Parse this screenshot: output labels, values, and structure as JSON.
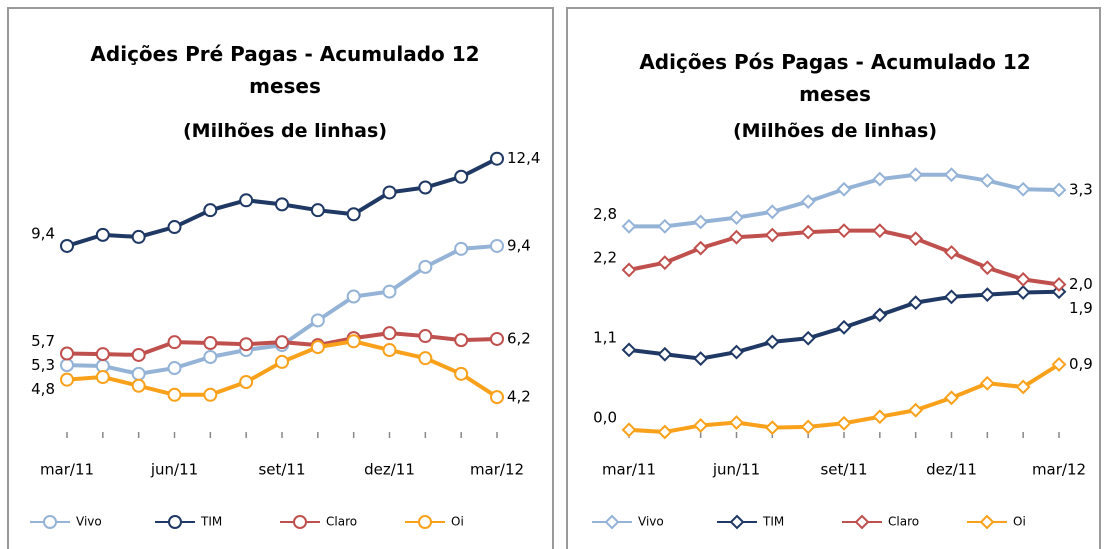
{
  "chart_data": [
    {
      "type": "line",
      "title": "Adições Pré Pagas - Acumulado 12 meses",
      "subtitle": "(Milhões de linhas)",
      "categories": [
        "mar/11",
        null,
        null,
        "jun/11",
        null,
        null,
        "set/11",
        null,
        null,
        "dez/11",
        null,
        null,
        "mar/12"
      ],
      "ylim": [
        3,
        12.7
      ],
      "marker": "circle",
      "legend": "bottom",
      "series": [
        {
          "name": "Vivo",
          "color": "#95b3d7",
          "values": [
            5.3,
            5.27,
            5.0,
            5.2,
            5.58,
            5.82,
            5.99,
            6.84,
            7.66,
            7.83,
            8.68,
            9.3,
            9.4
          ],
          "value_labels": [
            "5,3",
            null,
            null,
            null,
            null,
            null,
            null,
            null,
            null,
            null,
            null,
            null,
            "9,4"
          ]
        },
        {
          "name": "TIM",
          "color": "#1f3864",
          "values": [
            9.4,
            9.78,
            9.71,
            10.05,
            10.63,
            10.97,
            10.83,
            10.63,
            10.49,
            11.24,
            11.41,
            11.78,
            12.4
          ],
          "value_labels": [
            "9,4",
            null,
            null,
            null,
            null,
            null,
            null,
            null,
            null,
            null,
            null,
            null,
            "12,4"
          ]
        },
        {
          "name": "Claro",
          "color": "#c0504d",
          "values": [
            5.7,
            5.68,
            5.65,
            6.09,
            6.06,
            6.02,
            6.09,
            5.99,
            6.23,
            6.4,
            6.3,
            6.16,
            6.2
          ],
          "value_labels": [
            "5,7",
            null,
            null,
            null,
            null,
            null,
            null,
            null,
            null,
            null,
            null,
            null,
            "6,2"
          ]
        },
        {
          "name": "Oi",
          "color": "#f9a11b",
          "values": [
            4.8,
            4.89,
            4.59,
            4.28,
            4.28,
            4.72,
            5.41,
            5.92,
            6.12,
            5.82,
            5.54,
            5.0,
            4.2
          ],
          "value_labels": [
            "4,8",
            null,
            null,
            null,
            null,
            null,
            null,
            null,
            null,
            null,
            null,
            null,
            "4,2"
          ]
        }
      ]
    },
    {
      "type": "line",
      "title": "Adições Pós Pagas - Acumulado 12 meses",
      "subtitle": "(Milhões de linhas)",
      "categories": [
        "mar/11",
        null,
        null,
        "jun/11",
        null,
        null,
        "set/11",
        null,
        null,
        "dez/11",
        null,
        null,
        "mar/12"
      ],
      "ylim": [
        -0.03,
        3.85
      ],
      "marker": "diamond",
      "legend": "bottom",
      "series": [
        {
          "name": "Vivo",
          "color": "#95b3d7",
          "values": [
            2.8,
            2.8,
            2.86,
            2.92,
            3.0,
            3.14,
            3.31,
            3.45,
            3.51,
            3.51,
            3.43,
            3.31,
            3.3
          ],
          "value_labels": [
            "2,8",
            null,
            null,
            null,
            null,
            null,
            null,
            null,
            null,
            null,
            null,
            null,
            "3,3"
          ]
        },
        {
          "name": "TIM",
          "color": "#1f3864",
          "values": [
            1.1,
            1.04,
            0.98,
            1.07,
            1.21,
            1.26,
            1.41,
            1.58,
            1.75,
            1.83,
            1.86,
            1.89,
            1.9
          ],
          "value_labels": [
            "1,1",
            null,
            null,
            null,
            null,
            null,
            null,
            null,
            null,
            null,
            null,
            null,
            "1,9"
          ]
        },
        {
          "name": "Claro",
          "color": "#c0504d",
          "values": [
            2.2,
            2.3,
            2.5,
            2.65,
            2.68,
            2.72,
            2.74,
            2.74,
            2.63,
            2.44,
            2.23,
            2.07,
            2.0
          ],
          "value_labels": [
            "2,2",
            null,
            null,
            null,
            null,
            null,
            null,
            null,
            null,
            null,
            null,
            null,
            "2,0"
          ]
        },
        {
          "name": "Oi",
          "color": "#f9a11b",
          "values": [
            0.0,
            -0.03,
            0.06,
            0.1,
            0.03,
            0.04,
            0.09,
            0.18,
            0.27,
            0.44,
            0.64,
            0.59,
            0.9
          ],
          "value_labels": [
            "0,0",
            null,
            null,
            null,
            null,
            null,
            null,
            null,
            null,
            null,
            null,
            null,
            "0,9"
          ]
        }
      ]
    }
  ]
}
